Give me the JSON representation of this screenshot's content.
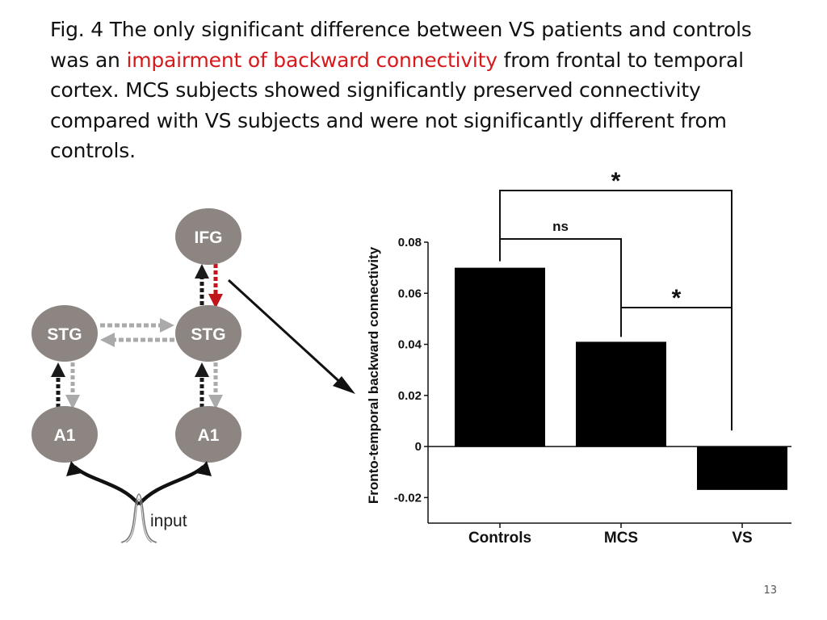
{
  "caption": {
    "fig_label": "Fig. 4",
    "text_before": " The only significant difference between VS patients and controls was an ",
    "highlight": "impairment of backward connectivity",
    "text_after": " from frontal to temporal cortex. MCS subjects showed significantly preserved connectivity compared with VS subjects and were not significantly different from controls.",
    "highlight_color": "#d7191c"
  },
  "diagram": {
    "nodes": {
      "ifg": "IFG",
      "stg_left": "STG",
      "stg_right": "STG",
      "a1_left": "A1",
      "a1_right": "A1"
    },
    "input_label": "input",
    "node_color": "#8c8581",
    "highlight_arrow_color": "#c0151b"
  },
  "chart_data": {
    "type": "bar",
    "categories": [
      "Controls",
      "MCS",
      "VS"
    ],
    "values": [
      0.07,
      0.041,
      -0.017
    ],
    "ylabel": "Fronto-temporal backward connectivity",
    "ylim": [
      -0.03,
      0.08
    ],
    "yticks": [
      -0.02,
      0,
      0.02,
      0.04,
      0.06,
      0.08
    ],
    "ytick_labels": [
      "-0.02",
      "0",
      "0.02",
      "0.04",
      "0.06",
      "0.08"
    ],
    "bar_color": "#000000",
    "significance": [
      {
        "from": "Controls",
        "to": "VS",
        "label": "*"
      },
      {
        "from": "Controls",
        "to": "MCS",
        "label": "ns"
      },
      {
        "from": "MCS",
        "to": "VS",
        "label": "*"
      }
    ]
  },
  "slide_number": "13"
}
